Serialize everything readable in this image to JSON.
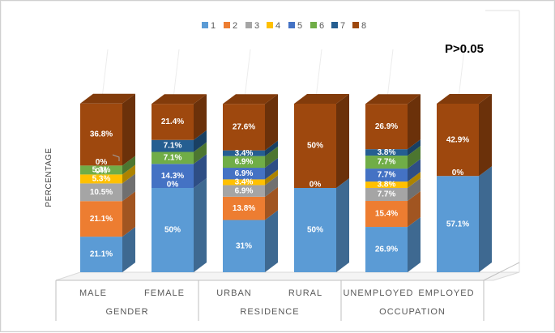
{
  "chart_data": {
    "type": "stacked-bar-3d",
    "title": "",
    "annotation": "P>0.05",
    "ylabel": "PERCENTAGE",
    "ylim": [
      0,
      100
    ],
    "series_names": [
      "1",
      "2",
      "3",
      "4",
      "5",
      "6",
      "7",
      "8"
    ],
    "colors": [
      "#5B9BD5",
      "#ED7D31",
      "#A5A5A5",
      "#FFC000",
      "#4472C4",
      "#70AD47",
      "#255E91",
      "#9E480E"
    ],
    "groups": [
      {
        "label": "GENDER",
        "categories": [
          "MALE",
          "FEMALE"
        ]
      },
      {
        "label": "RESIDENCE",
        "categories": [
          "URBAN",
          "RURAL"
        ]
      },
      {
        "label": "OCCUPATION",
        "categories": [
          "UNEMPLOYED",
          "EMPLOYED"
        ]
      }
    ],
    "bars": [
      {
        "category": "MALE",
        "values": [
          21.1,
          21.1,
          10.5,
          5.3,
          0,
          5.3,
          0,
          36.8
        ],
        "labels": [
          "21.1%",
          "21.1%",
          "10.5%",
          "5.3%",
          "0%",
          "5.3%",
          "0%",
          "36.8%"
        ]
      },
      {
        "category": "FEMALE",
        "values": [
          50,
          0,
          0,
          0,
          14.3,
          7.1,
          7.1,
          21.4
        ],
        "labels": [
          "50%",
          "0%",
          "",
          "",
          "14.3%",
          "7.1%",
          "7.1%",
          "21.4%"
        ]
      },
      {
        "category": "URBAN",
        "values": [
          31,
          13.8,
          6.9,
          3.4,
          6.9,
          6.9,
          3.4,
          27.6
        ],
        "labels": [
          "31%",
          "13.8%",
          "6.9%",
          "3.4%",
          "6.9%",
          "6.9%",
          "3.4%",
          "27.6%"
        ]
      },
      {
        "category": "RURAL",
        "values": [
          50,
          0,
          0,
          0,
          0,
          0,
          0,
          50
        ],
        "labels": [
          "50%",
          "0%",
          "",
          "",
          "",
          "",
          "",
          "50%"
        ]
      },
      {
        "category": "UNEMPLOYED",
        "values": [
          26.9,
          15.4,
          7.7,
          3.8,
          7.7,
          7.7,
          3.8,
          26.9
        ],
        "labels": [
          "26.9%",
          "15.4%",
          "7.7%",
          "3.8%",
          "7.7%",
          "7.7%",
          "3.8%",
          "26.9%"
        ]
      },
      {
        "category": "EMPLOYED",
        "values": [
          57.1,
          0,
          0,
          0,
          0,
          0,
          0,
          42.9
        ],
        "labels": [
          "57.1%",
          "0%",
          "",
          "",
          "",
          "",
          "",
          "42.9%"
        ]
      }
    ]
  }
}
